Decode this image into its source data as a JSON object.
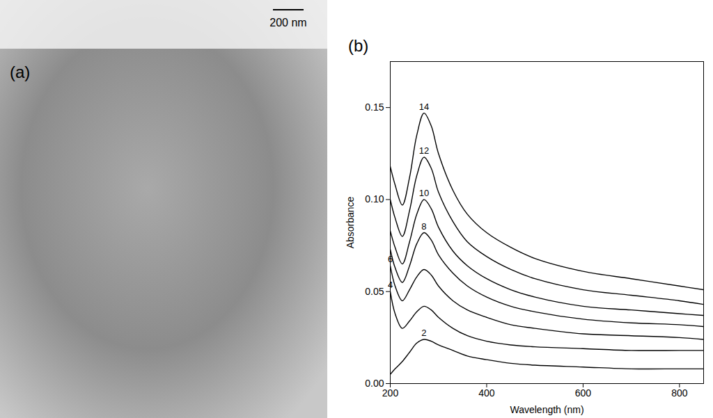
{
  "image": {
    "label": "(a)",
    "scale_bar": "200 nm"
  },
  "chart_data": {
    "type": "line",
    "panel": "(b)",
    "x_label": "Wavelength (nm)",
    "y_label": "Absorbance",
    "xlim": [
      200,
      850
    ],
    "xticks": [
      200,
      400,
      600,
      800
    ],
    "ylim": [
      0,
      0.175
    ],
    "yticks": [
      {
        "value": 0,
        "label": "0.00"
      },
      {
        "value": 0.05,
        "label": "0.05"
      },
      {
        "value": 0.1,
        "label": "0.10"
      },
      {
        "value": 0.15,
        "label": "0.15"
      }
    ],
    "grid": false,
    "x": [
      200,
      210,
      225,
      240,
      255,
      270,
      285,
      300,
      330,
      360,
      400,
      450,
      500,
      600,
      700,
      800,
      850
    ],
    "series": [
      {
        "name": "14",
        "color": "#000000",
        "values": [
          0.118,
          0.108,
          0.097,
          0.112,
          0.135,
          0.147,
          0.14,
          0.125,
          0.105,
          0.092,
          0.082,
          0.074,
          0.068,
          0.061,
          0.057,
          0.053,
          0.051
        ]
      },
      {
        "name": "12",
        "color": "#000000",
        "values": [
          0.1,
          0.09,
          0.08,
          0.094,
          0.113,
          0.123,
          0.117,
          0.104,
          0.088,
          0.077,
          0.069,
          0.062,
          0.057,
          0.051,
          0.048,
          0.045,
          0.043
        ]
      },
      {
        "name": "10",
        "color": "#000000",
        "values": [
          0.083,
          0.074,
          0.065,
          0.077,
          0.092,
          0.1,
          0.095,
          0.085,
          0.072,
          0.064,
          0.057,
          0.051,
          0.047,
          0.042,
          0.04,
          0.038,
          0.037
        ]
      },
      {
        "name": "8",
        "color": "#000000",
        "values": [
          0.073,
          0.063,
          0.055,
          0.064,
          0.076,
          0.082,
          0.078,
          0.07,
          0.06,
          0.053,
          0.047,
          0.042,
          0.039,
          0.035,
          0.033,
          0.032,
          0.031
        ]
      },
      {
        "name": "6",
        "color": "#000000",
        "values": [
          0.064,
          0.053,
          0.045,
          0.051,
          0.058,
          0.062,
          0.059,
          0.053,
          0.045,
          0.04,
          0.036,
          0.032,
          0.03,
          0.027,
          0.026,
          0.025,
          0.024
        ]
      },
      {
        "name": "4",
        "color": "#000000",
        "values": [
          0.05,
          0.038,
          0.03,
          0.034,
          0.039,
          0.042,
          0.04,
          0.036,
          0.03,
          0.026,
          0.023,
          0.021,
          0.02,
          0.019,
          0.018,
          0.018,
          0.018
        ]
      },
      {
        "name": "2",
        "color": "#000000",
        "values": [
          0.005,
          0.008,
          0.012,
          0.017,
          0.022,
          0.024,
          0.023,
          0.021,
          0.018,
          0.015,
          0.013,
          0.011,
          0.01,
          0.009,
          0.008,
          0.008,
          0.008
        ]
      }
    ]
  }
}
